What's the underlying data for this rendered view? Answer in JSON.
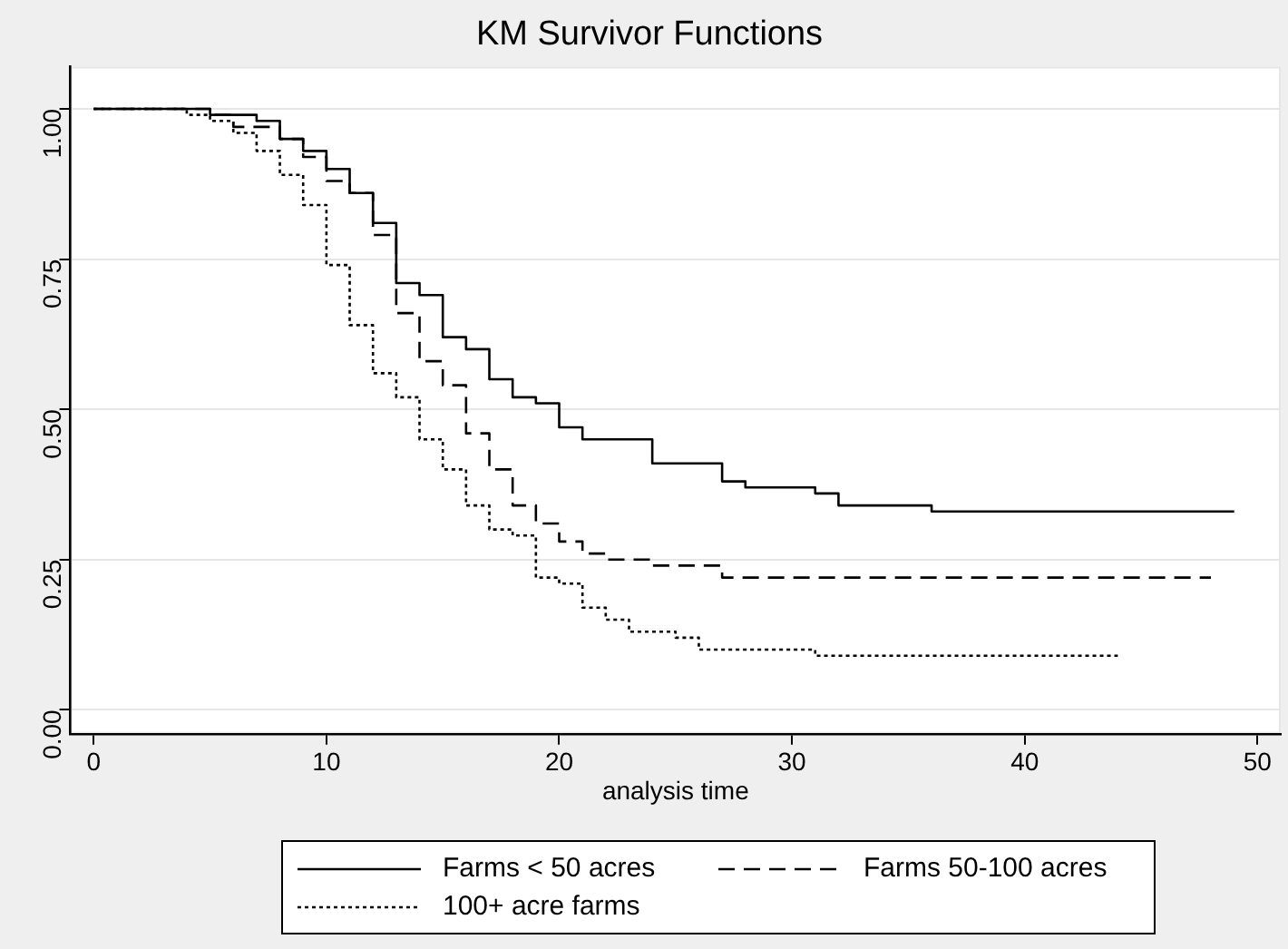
{
  "chart_data": {
    "type": "step",
    "title": "KM Survivor Functions",
    "xlabel": "analysis time",
    "xlim": [
      -1,
      51
    ],
    "xticks": [
      0,
      10,
      20,
      30,
      40,
      50
    ],
    "ylim": [
      -0.04,
      1.07
    ],
    "yticks": [
      {
        "value": 0,
        "label": "0.00"
      },
      {
        "value": 0.25,
        "label": "0.25"
      },
      {
        "value": 0.5,
        "label": "0.50"
      },
      {
        "value": 0.75,
        "label": "0.75"
      },
      {
        "value": 1,
        "label": "1.00"
      }
    ],
    "grid": "y",
    "legend": "bottom",
    "marker": "none",
    "series": [
      {
        "name": "Farms < 50 acres",
        "color": "#000000",
        "line_style": "solid",
        "x": [
          0,
          5,
          7,
          8,
          9,
          10,
          11,
          12,
          13,
          14,
          15,
          16,
          17,
          18,
          19,
          20,
          21,
          24,
          27,
          28,
          31,
          32,
          36,
          49
        ],
        "values": [
          1,
          0.99,
          0.98,
          0.95,
          0.93,
          0.9,
          0.86,
          0.81,
          0.71,
          0.69,
          0.62,
          0.6,
          0.55,
          0.52,
          0.51,
          0.47,
          0.45,
          0.41,
          0.38,
          0.37,
          0.36,
          0.34,
          0.33,
          0.33
        ]
      },
      {
        "name": "Farms 50-100 acres",
        "color": "#000000",
        "line_style": "dashed",
        "x": [
          0,
          5,
          6,
          8,
          9,
          10,
          11,
          12,
          13,
          14,
          15,
          16,
          17,
          18,
          19,
          20,
          21,
          22,
          23,
          24,
          27,
          48
        ],
        "values": [
          1,
          0.99,
          0.97,
          0.95,
          0.92,
          0.88,
          0.86,
          0.79,
          0.66,
          0.58,
          0.54,
          0.46,
          0.4,
          0.34,
          0.31,
          0.28,
          0.26,
          0.25,
          0.25,
          0.24,
          0.22,
          0.22
        ]
      },
      {
        "name": "100+ acre farms",
        "color": "#000000",
        "line_style": "dotted",
        "x": [
          0,
          4,
          5,
          6,
          7,
          8,
          9,
          10,
          11,
          12,
          13,
          14,
          15,
          16,
          17,
          18,
          19,
          20,
          21,
          22,
          23,
          25,
          26,
          31,
          44
        ],
        "values": [
          1,
          0.99,
          0.98,
          0.96,
          0.93,
          0.89,
          0.84,
          0.74,
          0.64,
          0.56,
          0.52,
          0.45,
          0.4,
          0.34,
          0.3,
          0.29,
          0.22,
          0.21,
          0.17,
          0.15,
          0.13,
          0.12,
          0.1,
          0.09,
          0.09
        ]
      }
    ]
  }
}
